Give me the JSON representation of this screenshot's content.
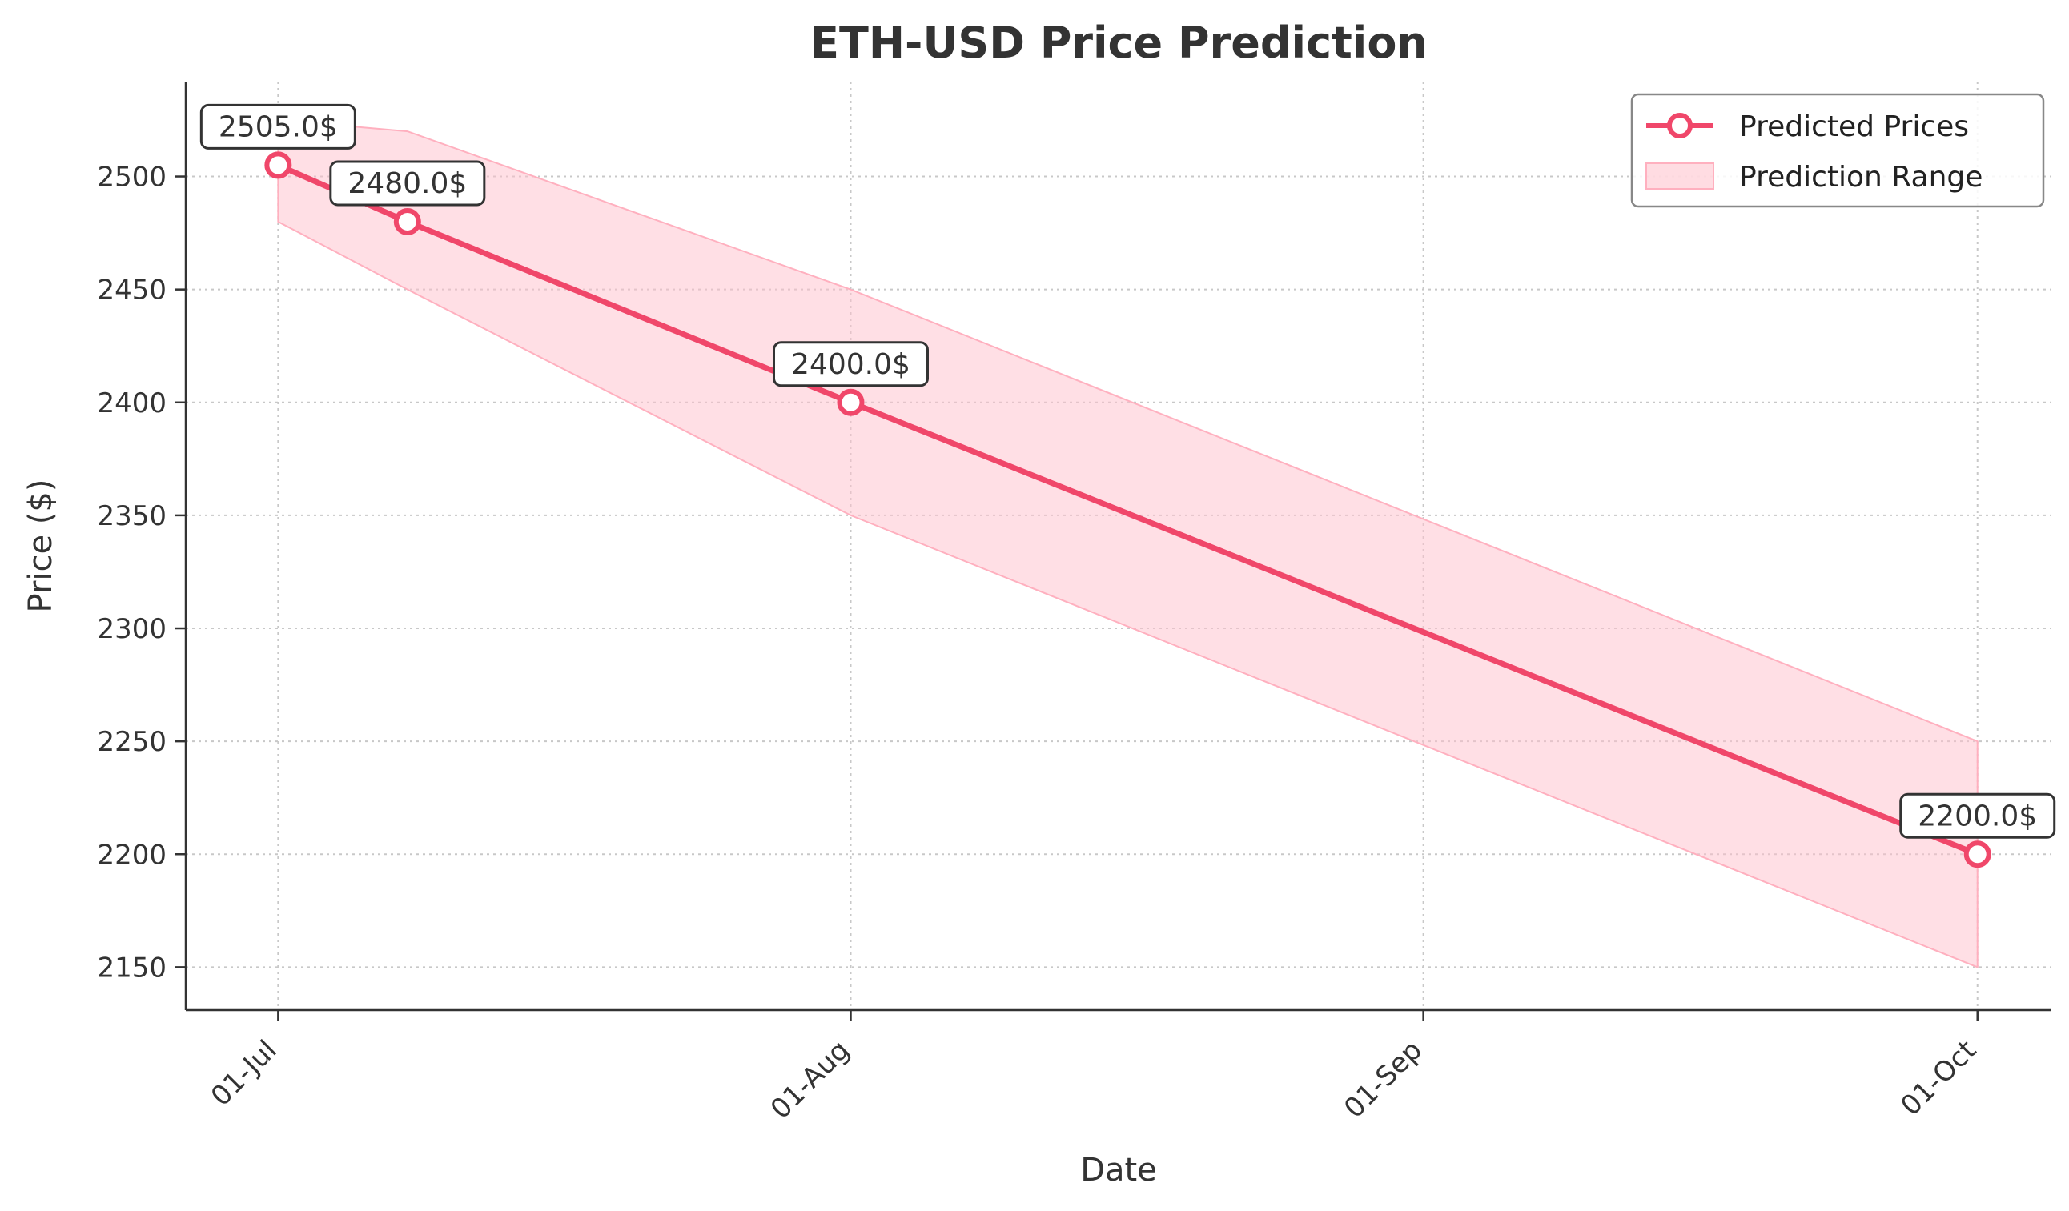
{
  "chart_data": {
    "type": "line",
    "title": "ETH-USD Price Prediction",
    "xlabel": "Date",
    "ylabel": "Price ($)",
    "x_ticks": [
      {
        "date": "2024-07-01",
        "label": "01-Jul"
      },
      {
        "date": "2024-08-01",
        "label": "01-Aug"
      },
      {
        "date": "2024-09-01",
        "label": "01-Sep"
      },
      {
        "date": "2024-10-01",
        "label": "01-Oct"
      }
    ],
    "y_ticks": [
      2150,
      2200,
      2250,
      2300,
      2350,
      2400,
      2450,
      2500
    ],
    "xlim": [
      "2024-06-26",
      "2024-10-05"
    ],
    "ylim": [
      2131,
      2542
    ],
    "grid": true,
    "legend_position": "top-right",
    "series": [
      {
        "name": "Predicted Prices",
        "color": "#f0476a",
        "points": [
          {
            "x": "2024-07-01",
            "y": 2505,
            "label": "2505.0$"
          },
          {
            "x": "2024-07-08",
            "y": 2480,
            "label": "2480.0$"
          },
          {
            "x": "2024-08-01",
            "y": 2400,
            "label": "2400.0$"
          },
          {
            "x": "2024-10-01",
            "y": 2200,
            "label": "2200.0$"
          }
        ]
      }
    ],
    "range": {
      "name": "Prediction Range",
      "color": "#ffc0cb",
      "points": [
        {
          "x": "2024-07-01",
          "low": 2480,
          "high": 2525
        },
        {
          "x": "2024-07-08",
          "low": 2450,
          "high": 2520
        },
        {
          "x": "2024-08-01",
          "low": 2350,
          "high": 2450
        },
        {
          "x": "2024-10-01",
          "low": 2150,
          "high": 2250
        }
      ]
    }
  }
}
